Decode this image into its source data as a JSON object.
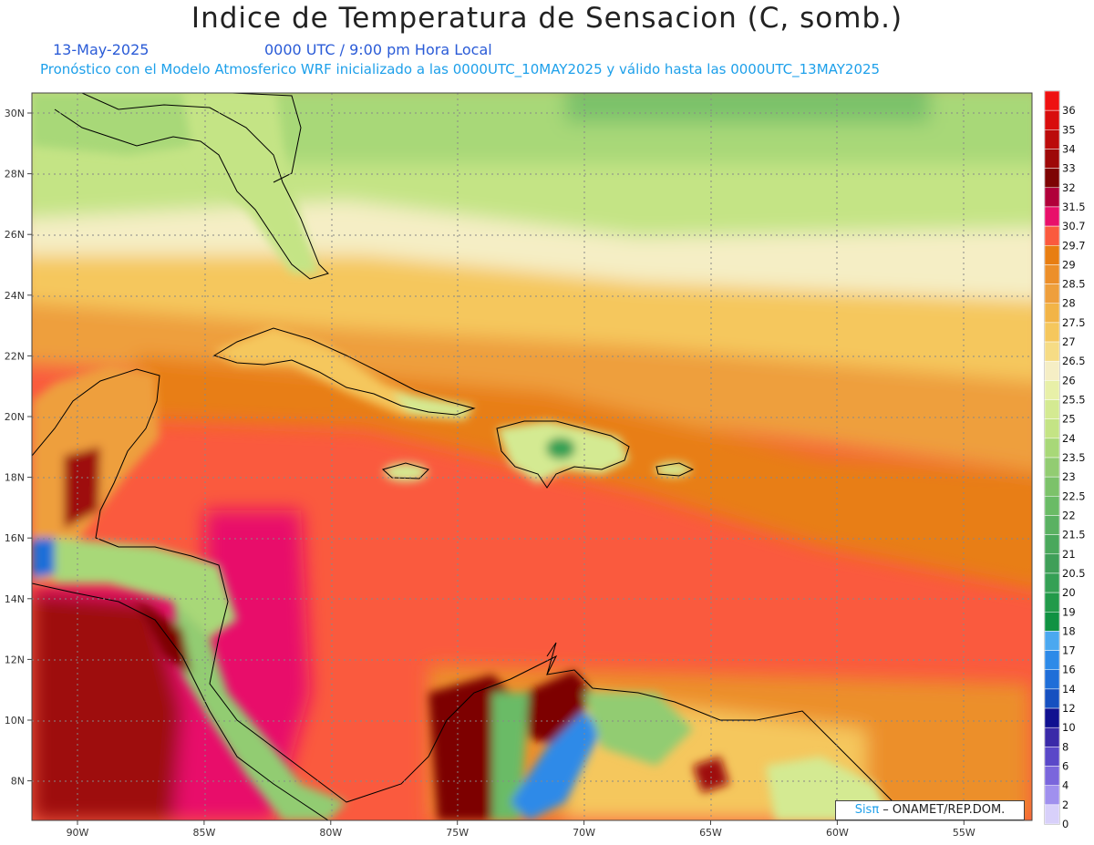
{
  "header": {
    "title": "Indice de Temperatura de Sensacion (C, somb.)",
    "date": "13-May-2025",
    "time": "0000 UTC / 9:00 pm Hora Local",
    "subtitle": "Pronóstico con el Modelo Atmosferico WRF inicializado a las 0000UTC_10MAY2025 y válido hasta las  0000UTC_13MAY2025"
  },
  "map": {
    "lat_ticks": [
      "30N",
      "28N",
      "26N",
      "24N",
      "22N",
      "20N",
      "18N",
      "16N",
      "14N",
      "12N",
      "10N",
      "8N"
    ],
    "lon_ticks": [
      "90W",
      "85W",
      "80W",
      "75W",
      "70W",
      "65W",
      "60W",
      "55W"
    ]
  },
  "colorbar": {
    "levels": [
      {
        "label": "36",
        "color": "#ee1111"
      },
      {
        "label": "35",
        "color": "#d80d0d"
      },
      {
        "label": "34",
        "color": "#bb0b0b"
      },
      {
        "label": "33",
        "color": "#9e0808"
      },
      {
        "label": "32",
        "color": "#7d0404"
      },
      {
        "label": "31.5",
        "color": "#b0003a"
      },
      {
        "label": "30.7",
        "color": "#e8106a"
      },
      {
        "label": "29.7",
        "color": "#fa5a3e"
      },
      {
        "label": "29",
        "color": "#e87e12"
      },
      {
        "label": "28.5",
        "color": "#ec8f2a"
      },
      {
        "label": "28",
        "color": "#ee9f3c"
      },
      {
        "label": "27.5",
        "color": "#f2b447"
      },
      {
        "label": "27",
        "color": "#f5c75d"
      },
      {
        "label": "26.5",
        "color": "#f6dc85"
      },
      {
        "label": "26",
        "color": "#f5eec5"
      },
      {
        "label": "25.5",
        "color": "#e8f0a8"
      },
      {
        "label": "25",
        "color": "#d4ea92"
      },
      {
        "label": "24",
        "color": "#c4e485"
      },
      {
        "label": "23.5",
        "color": "#a8d878"
      },
      {
        "label": "23",
        "color": "#92cc72"
      },
      {
        "label": "22.5",
        "color": "#7cc26a"
      },
      {
        "label": "22",
        "color": "#6abb66"
      },
      {
        "label": "21.5",
        "color": "#5ab162"
      },
      {
        "label": "21",
        "color": "#4aa85c"
      },
      {
        "label": "20.5",
        "color": "#3f9f58"
      },
      {
        "label": "20",
        "color": "#35a055"
      },
      {
        "label": "19",
        "color": "#229a4a"
      },
      {
        "label": "18",
        "color": "#109242"
      },
      {
        "label": "17",
        "color": "#4ba8f0"
      },
      {
        "label": "16",
        "color": "#2d8ae8"
      },
      {
        "label": "14",
        "color": "#1f6ed8"
      },
      {
        "label": "12",
        "color": "#1650c0"
      },
      {
        "label": "10",
        "color": "#101090"
      },
      {
        "label": "8",
        "color": "#3a2aa8"
      },
      {
        "label": "6",
        "color": "#5a48c8"
      },
      {
        "label": "4",
        "color": "#7a66dc"
      },
      {
        "label": "2",
        "color": "#a090ee"
      },
      {
        "label": "0",
        "color": "#d8d0fa"
      }
    ]
  },
  "credit": {
    "logo": "Sisπ",
    "text": " – ONAMET/REP.DOM."
  }
}
